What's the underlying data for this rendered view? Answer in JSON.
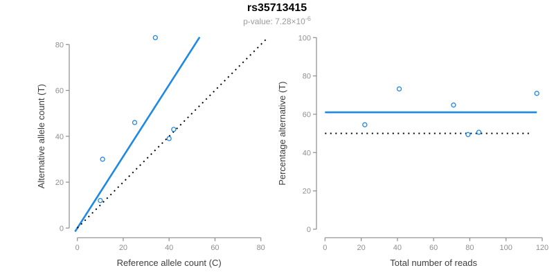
{
  "header": {
    "title": "rs35713415",
    "p_value_label": "p-value: 7.28×10",
    "p_value_exponent": "-6"
  },
  "colors": {
    "accent_blue": "#1E88E5",
    "dotted_black": "#000000",
    "axis_gray": "#8c8c8c",
    "tick_label_gray": "#8f8f8f",
    "axis_title_dark": "#3d3d3d",
    "subtitle_gray": "#9b9b9b",
    "title_black": "#000000"
  },
  "chart_data": [
    {
      "type": "scatter",
      "name": "allele-counts-plot",
      "xlabel": "Reference allele count (C)",
      "ylabel": "Alternative allele count (T)",
      "xlim": [
        0,
        80
      ],
      "ylim": [
        0,
        80
      ],
      "xticks": [
        0,
        20,
        40,
        60,
        80
      ],
      "yticks": [
        0,
        20,
        40,
        60,
        80
      ],
      "grid": false,
      "legend": "none",
      "points": [
        [
          10,
          12
        ],
        [
          11,
          30
        ],
        [
          25,
          46
        ],
        [
          34,
          83
        ],
        [
          40,
          39
        ],
        [
          42,
          43
        ]
      ],
      "lines": [
        {
          "name": "fitted-proportion-line",
          "style": "solid",
          "color": "blue",
          "from": [
            -1,
            -1.56
          ],
          "to": [
            53.3,
            83.2
          ]
        },
        {
          "name": "identity-line",
          "style": "dotted",
          "color": "black",
          "from": [
            0,
            0
          ],
          "to": [
            83.2,
            83.2
          ]
        }
      ]
    },
    {
      "type": "scatter",
      "name": "percentage-alternative-plot",
      "xlabel": "Total number of reads",
      "ylabel": "Percentage alternative (T)",
      "xlim": [
        0,
        120
      ],
      "ylim": [
        0,
        100
      ],
      "xticks": [
        0,
        20,
        40,
        60,
        80,
        100,
        120
      ],
      "yticks": [
        0,
        20,
        40,
        60,
        80,
        100
      ],
      "grid": false,
      "legend": "none",
      "points": [
        [
          22,
          54.5
        ],
        [
          41,
          73.2
        ],
        [
          71,
          64.8
        ],
        [
          79,
          49.4
        ],
        [
          85,
          50.6
        ],
        [
          117,
          70.9
        ]
      ],
      "lines": [
        {
          "name": "mean-percentage-line",
          "style": "solid",
          "color": "blue",
          "from": [
            0,
            61
          ],
          "to": [
            117,
            61
          ]
        },
        {
          "name": "expected-50-line",
          "style": "dotted",
          "color": "black",
          "from": [
            0,
            50
          ],
          "to": [
            114,
            50
          ]
        }
      ]
    }
  ]
}
